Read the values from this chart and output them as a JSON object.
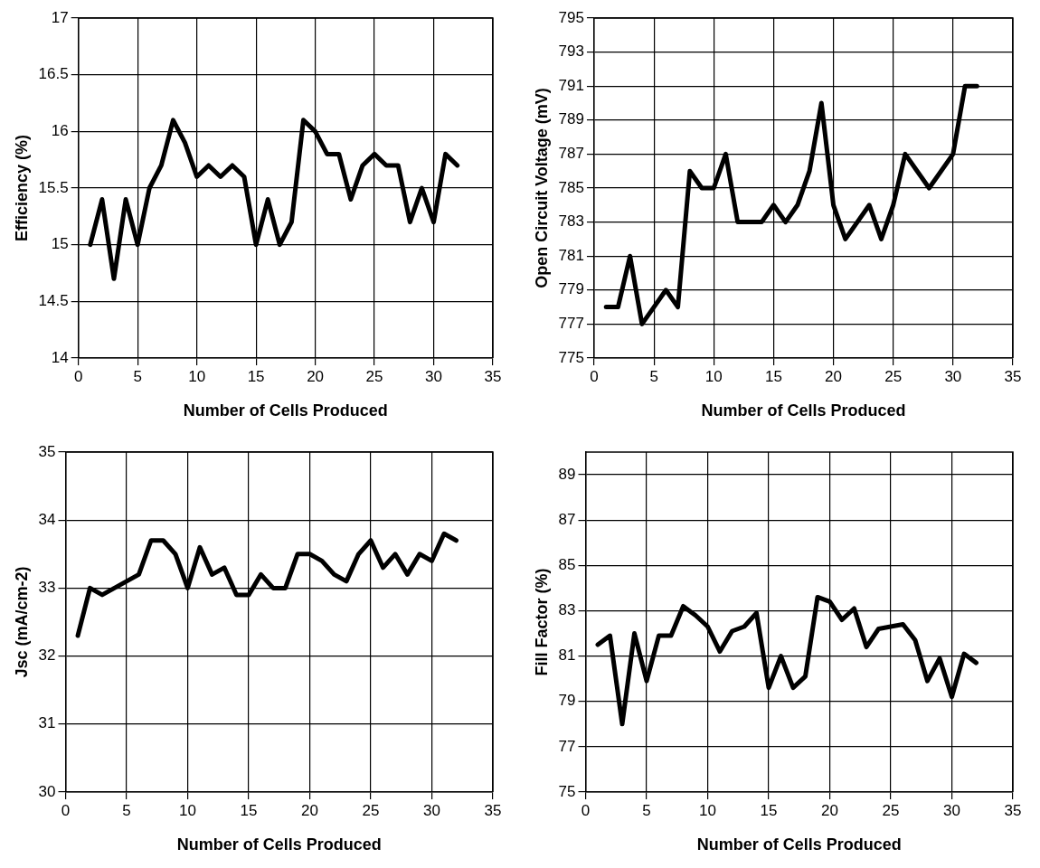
{
  "chart_data": [
    {
      "type": "line",
      "xlabel": "Number of Cells Produced",
      "ylabel": "Efficiency (%)",
      "x": [
        1,
        2,
        3,
        4,
        5,
        6,
        7,
        8,
        9,
        10,
        11,
        12,
        13,
        14,
        15,
        16,
        17,
        18,
        19,
        20,
        21,
        22,
        23,
        24,
        25,
        26,
        27,
        28,
        29,
        30,
        31,
        32
      ],
      "series": [
        {
          "color": "#000000",
          "values": [
            15.0,
            15.4,
            14.7,
            15.4,
            15.0,
            15.5,
            15.7,
            16.1,
            15.9,
            15.6,
            15.7,
            15.6,
            15.7,
            15.6,
            15.0,
            15.4,
            15.0,
            15.2,
            16.1,
            16.0,
            15.8,
            15.8,
            15.4,
            15.7,
            15.8,
            15.7,
            15.7,
            15.2,
            15.5,
            15.2,
            15.8,
            15.7
          ]
        }
      ],
      "xlim": [
        0,
        35
      ],
      "xticks": [
        0,
        5,
        10,
        15,
        20,
        25,
        30,
        35
      ],
      "ylim": [
        14,
        17
      ],
      "yticks": [
        14,
        14.5,
        15,
        15.5,
        16,
        16.5,
        17
      ],
      "grid": true,
      "legend": false,
      "marker": "none",
      "line_style": "solid"
    },
    {
      "type": "line",
      "xlabel": "Number of Cells Produced",
      "ylabel": "Open Circuit Voltage (mV)",
      "x": [
        1,
        2,
        3,
        4,
        5,
        6,
        7,
        8,
        9,
        10,
        11,
        12,
        13,
        14,
        15,
        16,
        17,
        18,
        19,
        20,
        21,
        22,
        23,
        24,
        25,
        26,
        27,
        28,
        29,
        30,
        31,
        32
      ],
      "series": [
        {
          "color": "#000000",
          "values": [
            778,
            778,
            781,
            777,
            778,
            779,
            778,
            786,
            785,
            785,
            787,
            783,
            783,
            783,
            784,
            783,
            784,
            786,
            790,
            784,
            782,
            783,
            784,
            782,
            784,
            787,
            786,
            785,
            786,
            787,
            791,
            791
          ]
        }
      ],
      "xlim": [
        0,
        35
      ],
      "xticks": [
        0,
        5,
        10,
        15,
        20,
        25,
        30,
        35
      ],
      "ylim": [
        775,
        795
      ],
      "yticks": [
        775,
        777,
        779,
        781,
        783,
        785,
        787,
        789,
        791,
        793,
        795
      ],
      "grid": true,
      "legend": false,
      "marker": "none",
      "line_style": "solid"
    },
    {
      "type": "line",
      "xlabel": "Number of Cells Produced",
      "ylabel": "Jsc (mA/cm-2)",
      "x": [
        1,
        2,
        3,
        4,
        5,
        6,
        7,
        8,
        9,
        10,
        11,
        12,
        13,
        14,
        15,
        16,
        17,
        18,
        19,
        20,
        21,
        22,
        23,
        24,
        25,
        26,
        27,
        28,
        29,
        30,
        31,
        32
      ],
      "series": [
        {
          "color": "#000000",
          "values": [
            32.3,
            33.0,
            32.9,
            33.0,
            33.1,
            33.2,
            33.7,
            33.7,
            33.5,
            33.0,
            33.6,
            33.2,
            33.3,
            32.9,
            32.9,
            33.2,
            33.0,
            33.0,
            33.5,
            33.5,
            33.4,
            33.2,
            33.1,
            33.5,
            33.7,
            33.3,
            33.5,
            33.2,
            33.5,
            33.4,
            33.8,
            33.7
          ]
        }
      ],
      "xlim": [
        0,
        35
      ],
      "xticks": [
        0,
        5,
        10,
        15,
        20,
        25,
        30,
        35
      ],
      "ylim": [
        30,
        35
      ],
      "yticks": [
        30,
        31,
        32,
        33,
        34,
        35
      ],
      "grid": true,
      "legend": false,
      "marker": "none",
      "line_style": "solid"
    },
    {
      "type": "line",
      "xlabel": "Number of Cells Produced",
      "ylabel": "Fill Factor (%)",
      "x": [
        1,
        2,
        3,
        4,
        5,
        6,
        7,
        8,
        9,
        10,
        11,
        12,
        13,
        14,
        15,
        16,
        17,
        18,
        19,
        20,
        21,
        22,
        23,
        24,
        25,
        26,
        27,
        28,
        29,
        30,
        31,
        32
      ],
      "series": [
        {
          "color": "#000000",
          "values": [
            81.5,
            81.9,
            78.0,
            82.0,
            79.9,
            81.9,
            81.9,
            83.2,
            82.8,
            82.3,
            81.2,
            82.1,
            82.3,
            82.9,
            79.6,
            81.0,
            79.6,
            80.1,
            83.6,
            83.4,
            82.6,
            83.1,
            81.4,
            82.2,
            82.3,
            82.4,
            81.7,
            79.9,
            80.9,
            79.2,
            81.1,
            80.7
          ]
        }
      ],
      "xlim": [
        0,
        35
      ],
      "xticks": [
        0,
        5,
        10,
        15,
        20,
        25,
        30,
        35
      ],
      "ylim": [
        75,
        90
      ],
      "yticks": [
        75,
        77,
        79,
        81,
        83,
        85,
        87,
        89
      ],
      "grid": true,
      "legend": false,
      "marker": "none",
      "line_style": "solid"
    }
  ]
}
